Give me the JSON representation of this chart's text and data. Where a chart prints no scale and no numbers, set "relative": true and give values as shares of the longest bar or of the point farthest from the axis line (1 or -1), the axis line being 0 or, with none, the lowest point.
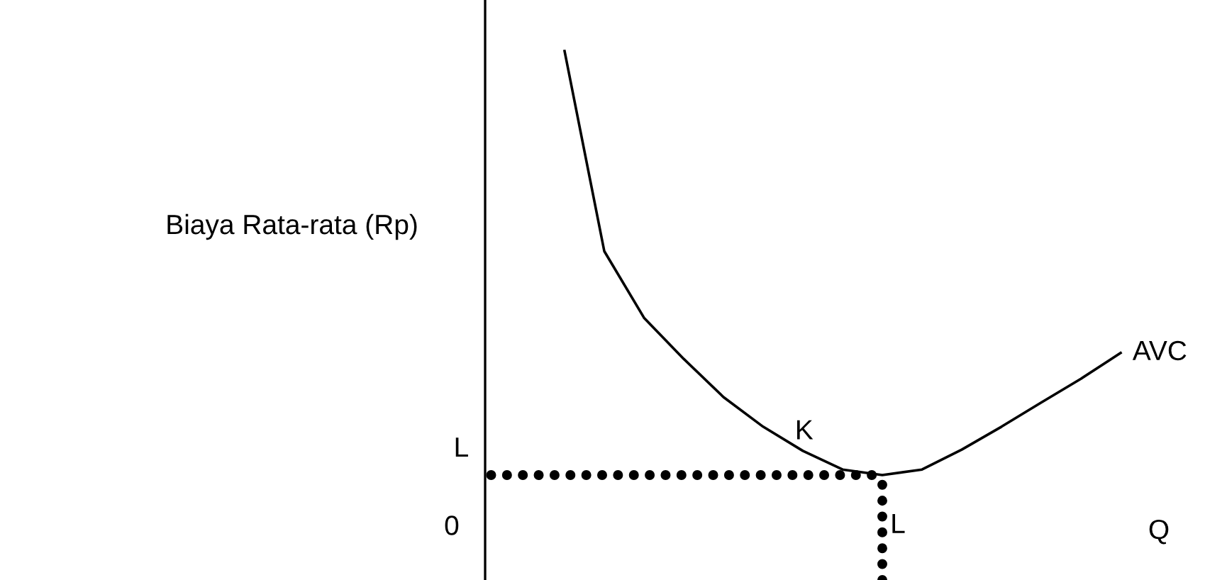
{
  "chart_data": {
    "type": "line",
    "relative": true,
    "ylabel": "Biaya Rata-rata (Rp)",
    "xlabel": "Q",
    "line_style": "solid",
    "marker": "none",
    "legend": false,
    "categories": [
      null,
      null,
      null,
      null,
      null,
      null,
      null,
      null,
      null,
      null,
      null,
      null,
      null,
      null,
      null,
      null,
      null
    ],
    "series": [
      {
        "name": "AVC",
        "color": "#000000",
        "values": [
          null,
          null,
          1,
          0.528,
          0.371,
          0.274,
          0.184,
          0.114,
          0.057,
          0.013,
          0,
          0.013,
          0.06,
          0.114,
          0.171,
          0.227,
          0.288
        ]
      }
    ],
    "ref_lines": [
      {
        "axis": "y",
        "value": 0,
        "label": "L",
        "line_style": "dotted",
        "color": "#000000"
      },
      {
        "axis": "x",
        "label": "L",
        "line_style": "dotted",
        "color": "#000000"
      }
    ],
    "annotations": [
      "K",
      "0"
    ]
  }
}
